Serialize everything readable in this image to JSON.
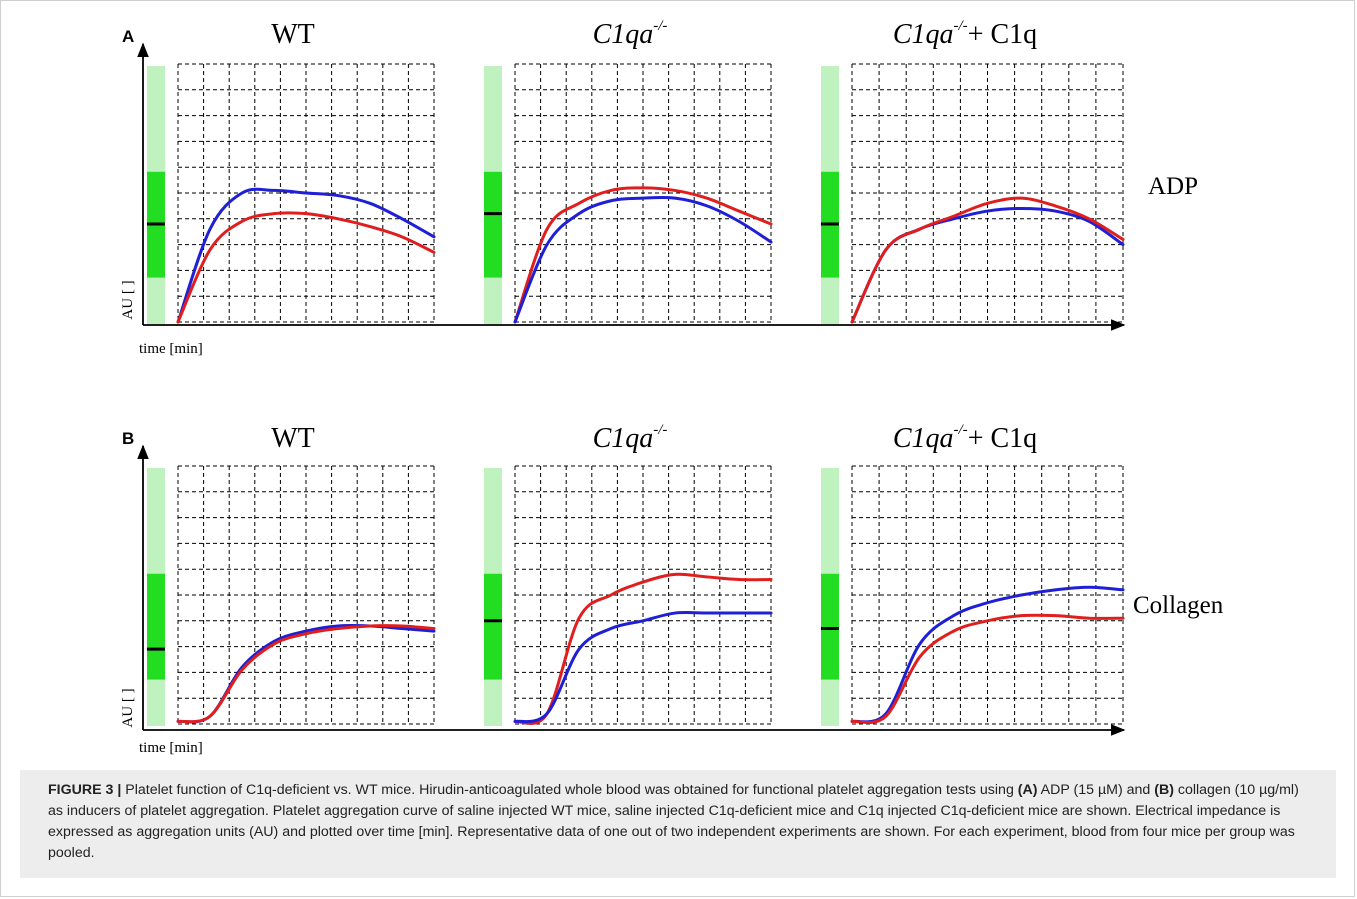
{
  "panels": [
    {
      "letter": "A",
      "inducer": "ADP",
      "ylabel": "AU [ ]",
      "xlabel": "time [min]",
      "charts": [
        {
          "title_main": "WT",
          "title_sup": "",
          "title_suffix": "",
          "italic": false
        },
        {
          "title_main": "C1qa",
          "title_sup": "-/-",
          "title_suffix": "",
          "italic": true
        },
        {
          "title_main": "C1qa",
          "title_sup": "-/-",
          "title_suffix": "+ C1q",
          "italic": true
        }
      ]
    },
    {
      "letter": "B",
      "inducer": "Collagen",
      "ylabel": "AU [ ]",
      "xlabel": "time [min]",
      "charts": [
        {
          "title_main": "WT",
          "title_sup": "",
          "title_suffix": "",
          "italic": false
        },
        {
          "title_main": "C1qa",
          "title_sup": "-/-",
          "title_suffix": "",
          "italic": true
        },
        {
          "title_main": "C1qa",
          "title_sup": "-/-",
          "title_suffix": "+ C1q",
          "italic": true
        }
      ]
    }
  ],
  "colors": {
    "blue": "#1f1fd6",
    "red": "#e01e1e",
    "bar_light": "#bff2bf",
    "bar_dark": "#22dd22",
    "grid": "#000000",
    "caption_bg": "#ededed"
  },
  "chart_data": [
    {
      "type": "line",
      "panel": "A",
      "title": "WT",
      "x": [
        0,
        1,
        2,
        3,
        4,
        5,
        6,
        7,
        8
      ],
      "ylim": [
        0,
        10
      ],
      "xlim": [
        0,
        8
      ],
      "series": [
        {
          "color": "blue",
          "values": [
            0,
            3.6,
            5.0,
            5.1,
            5.0,
            4.9,
            4.6,
            4.0,
            3.3
          ]
        },
        {
          "color": "red",
          "values": [
            0,
            2.8,
            3.9,
            4.2,
            4.2,
            4.0,
            3.7,
            3.3,
            2.7
          ]
        }
      ],
      "bar_marker": 3.8
    },
    {
      "type": "line",
      "panel": "A",
      "title": "C1qa-/-",
      "x": [
        0,
        1,
        2,
        3,
        4,
        5,
        6,
        7,
        8
      ],
      "ylim": [
        0,
        10
      ],
      "xlim": [
        0,
        8
      ],
      "series": [
        {
          "color": "red",
          "values": [
            0,
            3.6,
            4.6,
            5.1,
            5.2,
            5.1,
            4.8,
            4.3,
            3.8
          ]
        },
        {
          "color": "blue",
          "values": [
            0,
            3.0,
            4.2,
            4.7,
            4.8,
            4.8,
            4.5,
            3.9,
            3.1
          ]
        }
      ],
      "bar_marker": 4.2
    },
    {
      "type": "line",
      "panel": "A",
      "title": "C1qa-/- + C1q",
      "x": [
        0,
        1,
        2,
        3,
        4,
        5,
        6,
        7,
        8
      ],
      "ylim": [
        0,
        10
      ],
      "xlim": [
        0,
        8
      ],
      "series": [
        {
          "color": "blue",
          "values": [
            0,
            2.8,
            3.6,
            4.0,
            4.3,
            4.4,
            4.3,
            3.9,
            3.0
          ]
        },
        {
          "color": "red",
          "values": [
            0,
            2.8,
            3.6,
            4.1,
            4.6,
            4.8,
            4.5,
            4.0,
            3.2
          ]
        }
      ],
      "bar_marker": 3.8
    },
    {
      "type": "line",
      "panel": "B",
      "title": "WT",
      "x": [
        0,
        1,
        2,
        3,
        4,
        5,
        6,
        7,
        8
      ],
      "ylim": [
        0,
        10
      ],
      "xlim": [
        0,
        8
      ],
      "series": [
        {
          "color": "blue",
          "values": [
            0.1,
            0.3,
            2.2,
            3.2,
            3.6,
            3.8,
            3.8,
            3.7,
            3.6
          ]
        },
        {
          "color": "red",
          "values": [
            0.1,
            0.3,
            2.1,
            3.1,
            3.5,
            3.7,
            3.8,
            3.8,
            3.7
          ]
        }
      ],
      "bar_marker": 2.9
    },
    {
      "type": "line",
      "panel": "B",
      "title": "C1qa-/-",
      "x": [
        0,
        1,
        2,
        3,
        4,
        5,
        6,
        7,
        8
      ],
      "ylim": [
        0,
        10
      ],
      "xlim": [
        0,
        8
      ],
      "series": [
        {
          "color": "red",
          "values": [
            0.1,
            0.4,
            4.1,
            5.0,
            5.5,
            5.8,
            5.7,
            5.6,
            5.6
          ]
        },
        {
          "color": "blue",
          "values": [
            0.1,
            0.4,
            2.9,
            3.7,
            4.0,
            4.3,
            4.3,
            4.3,
            4.3
          ]
        }
      ],
      "bar_marker": 4.0
    },
    {
      "type": "line",
      "panel": "B",
      "title": "C1qa-/- + C1q",
      "x": [
        0,
        1,
        2,
        3,
        4,
        5,
        6,
        7,
        8
      ],
      "ylim": [
        0,
        10
      ],
      "xlim": [
        0,
        8
      ],
      "series": [
        {
          "color": "blue",
          "values": [
            0.1,
            0.4,
            3.1,
            4.2,
            4.7,
            5.0,
            5.2,
            5.3,
            5.2
          ]
        },
        {
          "color": "red",
          "values": [
            0.1,
            0.3,
            2.6,
            3.6,
            4.0,
            4.2,
            4.2,
            4.1,
            4.1
          ]
        }
      ],
      "bar_marker": 3.7
    }
  ],
  "caption": {
    "label": "FIGURE 3 |",
    "part1": " Platelet function of C1q-deficient vs. WT mice. Hirudin-anticoagulated whole blood was obtained for functional platelet aggregation tests using ",
    "ref_a": "(A)",
    "part2": " ADP (15 µM) and ",
    "ref_b": "(B)",
    "part3": " collagen (10 µg/ml) as inducers of platelet aggregation. Platelet aggregation curve of saline injected WT mice, saline injected C1q-deficient mice and C1q injected C1q-deficient mice are shown. Electrical impedance is expressed as aggregation units (AU) and plotted over time [min]. Representative data of one out of two independent experiments are shown. For each experiment, blood from four mice per group was pooled."
  }
}
